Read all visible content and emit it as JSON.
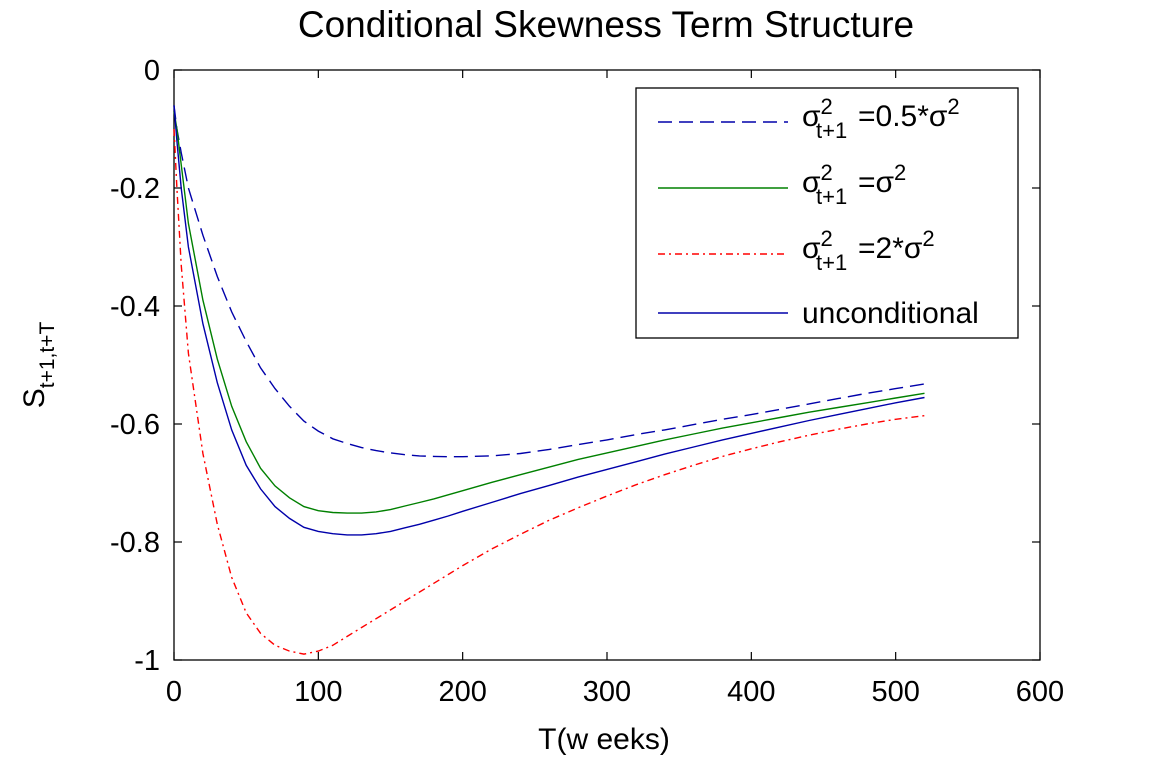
{
  "chart_data": {
    "type": "line",
    "title": "Conditional Skewness Term Structure",
    "xlabel": "T(w eeks)",
    "ylabel": {
      "base": "S",
      "sub": "t+1,t+T"
    },
    "xlim": [
      0,
      600
    ],
    "ylim": [
      -1,
      0
    ],
    "xticks": [
      0,
      100,
      200,
      300,
      400,
      500,
      600
    ],
    "yticks": [
      0,
      -0.2,
      -0.4,
      -0.6,
      -0.8,
      -1
    ],
    "xtick_labels": [
      "0",
      "100",
      "200",
      "300",
      "400",
      "500",
      "600"
    ],
    "ytick_labels": [
      "0",
      "-0.2",
      "-0.4",
      "-0.6",
      "-0.8",
      "-1"
    ],
    "grid": false,
    "legend_position": "top-right",
    "series": [
      {
        "name": "σ²t+1=0.5*σ²",
        "legend": {
          "sym": "σ",
          "sup": "2",
          "sub": "t+1",
          "rest": "=0.5*σ",
          "rest_sup": "2"
        },
        "color": "#0000aa",
        "style": "dashed",
        "x": [
          0,
          2,
          5,
          10,
          20,
          30,
          40,
          50,
          60,
          70,
          80,
          90,
          100,
          110,
          120,
          130,
          140,
          150,
          160,
          170,
          180,
          190,
          200,
          220,
          240,
          260,
          280,
          300,
          320,
          340,
          360,
          380,
          400,
          420,
          440,
          460,
          480,
          500,
          520
        ],
        "y": [
          -0.06,
          -0.1,
          -0.14,
          -0.2,
          -0.28,
          -0.35,
          -0.41,
          -0.46,
          -0.505,
          -0.54,
          -0.57,
          -0.595,
          -0.612,
          -0.625,
          -0.633,
          -0.64,
          -0.645,
          -0.649,
          -0.652,
          -0.654,
          -0.655,
          -0.6555,
          -0.6555,
          -0.654,
          -0.65,
          -0.643,
          -0.635,
          -0.627,
          -0.618,
          -0.61,
          -0.601,
          -0.592,
          -0.584,
          -0.575,
          -0.566,
          -0.557,
          -0.548,
          -0.54,
          -0.532
        ]
      },
      {
        "name": "σ²t+1=σ²",
        "legend": {
          "sym": "σ",
          "sup": "2",
          "sub": "t+1",
          "rest": "=σ",
          "rest_sup": "2"
        },
        "color": "#008000",
        "style": "solid",
        "x": [
          0,
          2,
          5,
          10,
          20,
          30,
          40,
          50,
          60,
          70,
          80,
          90,
          100,
          110,
          120,
          130,
          140,
          150,
          160,
          170,
          180,
          190,
          200,
          220,
          240,
          260,
          280,
          300,
          320,
          340,
          360,
          380,
          400,
          420,
          440,
          460,
          480,
          500,
          520
        ],
        "y": [
          -0.07,
          -0.1,
          -0.16,
          -0.26,
          -0.39,
          -0.49,
          -0.57,
          -0.63,
          -0.675,
          -0.705,
          -0.725,
          -0.74,
          -0.747,
          -0.75,
          -0.751,
          -0.751,
          -0.749,
          -0.745,
          -0.739,
          -0.733,
          -0.727,
          -0.72,
          -0.713,
          -0.699,
          -0.686,
          -0.673,
          -0.66,
          -0.649,
          -0.638,
          -0.627,
          -0.617,
          -0.607,
          -0.598,
          -0.589,
          -0.58,
          -0.572,
          -0.564,
          -0.556,
          -0.548
        ]
      },
      {
        "name": "σ²t+1=2*σ²",
        "legend": {
          "sym": "σ",
          "sup": "2",
          "sub": "t+1",
          "rest": "=2*σ",
          "rest_sup": "2"
        },
        "color": "#ff0000",
        "style": "dashdot",
        "x": [
          0,
          2,
          5,
          10,
          20,
          30,
          40,
          50,
          60,
          70,
          80,
          90,
          100,
          110,
          120,
          130,
          140,
          150,
          160,
          170,
          180,
          190,
          200,
          220,
          240,
          260,
          280,
          300,
          320,
          340,
          360,
          380,
          400,
          420,
          440,
          460,
          480,
          500,
          520
        ],
        "y": [
          -0.1,
          -0.2,
          -0.33,
          -0.48,
          -0.65,
          -0.77,
          -0.86,
          -0.92,
          -0.955,
          -0.975,
          -0.985,
          -0.99,
          -0.985,
          -0.975,
          -0.96,
          -0.945,
          -0.93,
          -0.915,
          -0.9,
          -0.885,
          -0.87,
          -0.855,
          -0.84,
          -0.812,
          -0.787,
          -0.763,
          -0.742,
          -0.722,
          -0.703,
          -0.686,
          -0.67,
          -0.655,
          -0.642,
          -0.63,
          -0.619,
          -0.609,
          -0.6,
          -0.592,
          -0.586
        ]
      },
      {
        "name": "unconditional",
        "legend": {
          "text": "unconditional"
        },
        "color": "#0000aa",
        "style": "solid",
        "x": [
          0,
          2,
          5,
          10,
          20,
          30,
          40,
          50,
          60,
          70,
          80,
          90,
          100,
          110,
          120,
          130,
          140,
          150,
          160,
          170,
          180,
          190,
          200,
          220,
          240,
          260,
          280,
          300,
          320,
          340,
          360,
          380,
          400,
          420,
          440,
          460,
          480,
          500,
          520
        ],
        "y": [
          -0.06,
          -0.12,
          -0.2,
          -0.3,
          -0.43,
          -0.53,
          -0.61,
          -0.67,
          -0.71,
          -0.74,
          -0.76,
          -0.775,
          -0.782,
          -0.786,
          -0.788,
          -0.788,
          -0.786,
          -0.782,
          -0.776,
          -0.77,
          -0.763,
          -0.756,
          -0.748,
          -0.733,
          -0.718,
          -0.704,
          -0.69,
          -0.677,
          -0.664,
          -0.651,
          -0.639,
          -0.627,
          -0.616,
          -0.605,
          -0.594,
          -0.584,
          -0.574,
          -0.564,
          -0.555
        ]
      }
    ]
  }
}
